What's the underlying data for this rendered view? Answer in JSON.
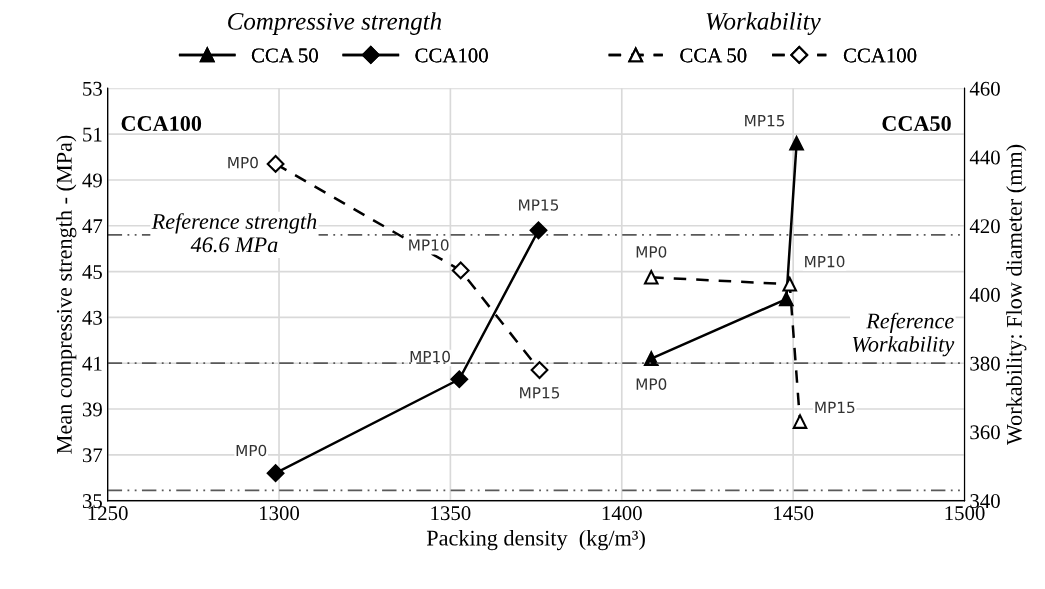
{
  "chart_data": {
    "type": "line",
    "xlabel": "Packing density  (kg/m³)",
    "ylabel": "Mean compressive strength - (MPa)",
    "y2label": "Workability: Flow diameter (mm)",
    "xlim": [
      1250,
      1500
    ],
    "xticks": [
      1250,
      1300,
      1350,
      1400,
      1450,
      1500
    ],
    "ylim": [
      35,
      53
    ],
    "yticks": [
      35,
      37,
      39,
      41,
      43,
      45,
      47,
      49,
      51,
      53
    ],
    "y2lim": [
      340,
      460
    ],
    "y2ticks": [
      340,
      360,
      380,
      400,
      420,
      440,
      460
    ],
    "grid": true,
    "legend": "top",
    "series": [
      {
        "name": "CCA 50",
        "color": "#000000",
        "marker": "triangle",
        "line_style": "solid",
        "x": [
          1408.6,
          1448,
          1451
        ],
        "values": [
          41.2,
          43.8,
          50.6
        ],
        "value_labels": [
          "MP0",
          null,
          "MP15"
        ]
      },
      {
        "name": "CCA100",
        "color": "#000000",
        "marker": "diamond",
        "line_style": "solid",
        "x": [
          1299,
          1352.6,
          1375.7
        ],
        "values": [
          36.2,
          40.3,
          46.8
        ],
        "value_labels": [
          "MP0",
          "MP10",
          "MP15"
        ]
      },
      {
        "name": "CCA 50",
        "color": "#000000",
        "marker": "triangle",
        "line_style": "dashed",
        "axis": "y2",
        "x": [
          1408.6,
          1449,
          1452
        ],
        "values": [
          405,
          403,
          363
        ],
        "value_labels": [
          "MP0",
          "MP10",
          "MP15"
        ]
      },
      {
        "name": "CCA100",
        "color": "#000000",
        "marker": "diamond",
        "line_style": "dashed",
        "axis": "y2",
        "x": [
          1299,
          1353,
          1376
        ],
        "values": [
          438,
          407,
          378
        ],
        "value_labels": [
          "MP0",
          "MP10",
          "MP15"
        ]
      }
    ],
    "ref_lines": [
      {
        "axis": "y",
        "value": 46.6,
        "label": "Reference strength\n46.6 MPa",
        "color": "#595959",
        "line_style": "dashdot"
      },
      {
        "axis": "y2",
        "value": 380,
        "label": "Reference\nWorkability",
        "color": "#595959",
        "line_style": "dashdot"
      },
      {
        "axis": "y2",
        "value": 343,
        "color": "#595959",
        "line_style": "dashdot"
      }
    ],
    "annotations": [
      "Compressive strength",
      "Workability",
      "CCA100",
      "CCA50"
    ]
  }
}
